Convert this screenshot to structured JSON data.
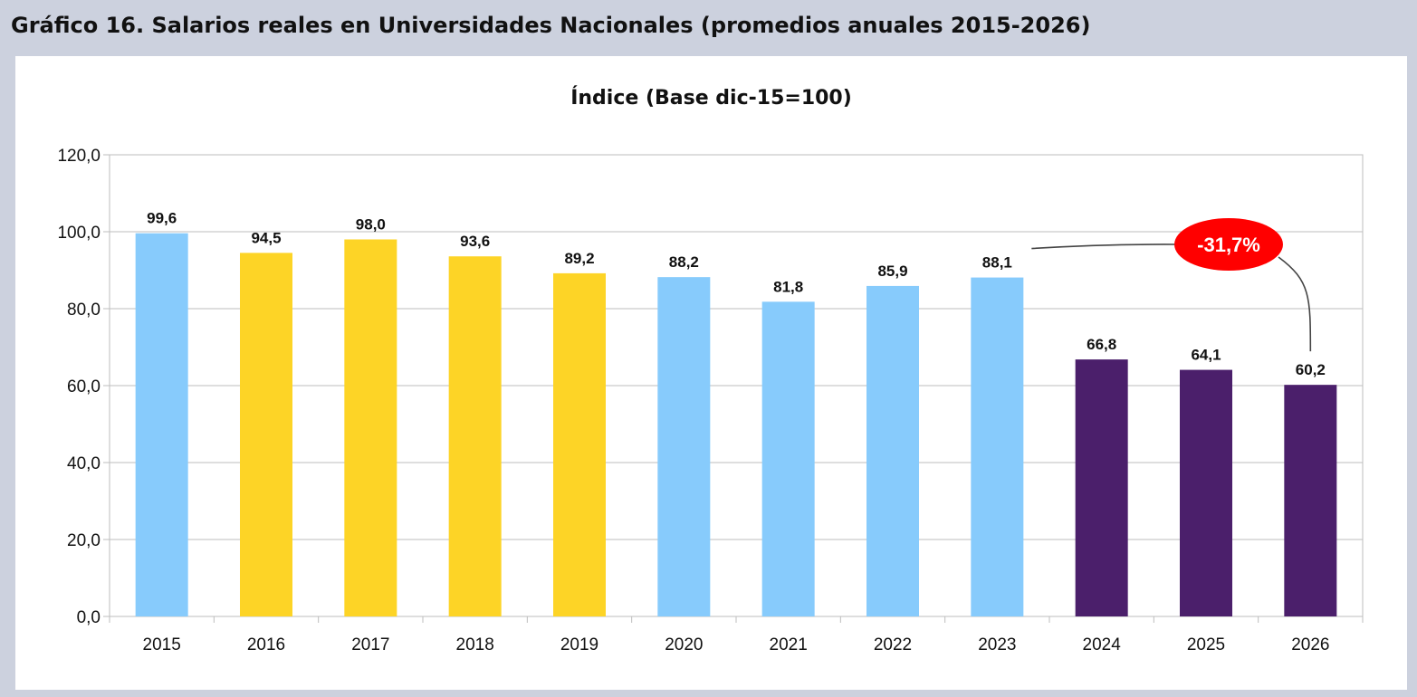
{
  "title": "Gráfico 16.  Salarios reales en Universidades Nacionales (promedios anuales 2015-2026)",
  "chart_data": {
    "type": "bar",
    "title": "Índice (Base dic-15=100)",
    "categories": [
      "2015",
      "2016",
      "2017",
      "2018",
      "2019",
      "2020",
      "2021",
      "2022",
      "2023",
      "2024",
      "2025",
      "2026"
    ],
    "values": [
      99.6,
      94.5,
      98.0,
      93.6,
      89.2,
      88.2,
      81.8,
      85.9,
      88.1,
      66.8,
      64.1,
      60.2
    ],
    "value_labels": [
      "99,6",
      "94,5",
      "98,0",
      "93,6",
      "89,2",
      "88,2",
      "81,8",
      "85,9",
      "88,1",
      "66,8",
      "64,1",
      "60,2"
    ],
    "bar_colors": [
      "#87cbfc",
      "#fdd426",
      "#fdd426",
      "#fdd426",
      "#fdd426",
      "#87cbfc",
      "#87cbfc",
      "#87cbfc",
      "#87cbfc",
      "#4b1f6b",
      "#4b1f6b",
      "#4b1f6b"
    ],
    "ylim": [
      0,
      120
    ],
    "yticks": [
      0,
      20,
      40,
      60,
      80,
      100,
      120
    ],
    "ytick_labels": [
      "0,0",
      "20,0",
      "40,0",
      "60,0",
      "80,0",
      "100,0",
      "120,0"
    ],
    "grid": true,
    "annotation": {
      "text": "-31,7%",
      "color": "#ff0000",
      "from_category": "2023",
      "to_category": "2026"
    }
  }
}
